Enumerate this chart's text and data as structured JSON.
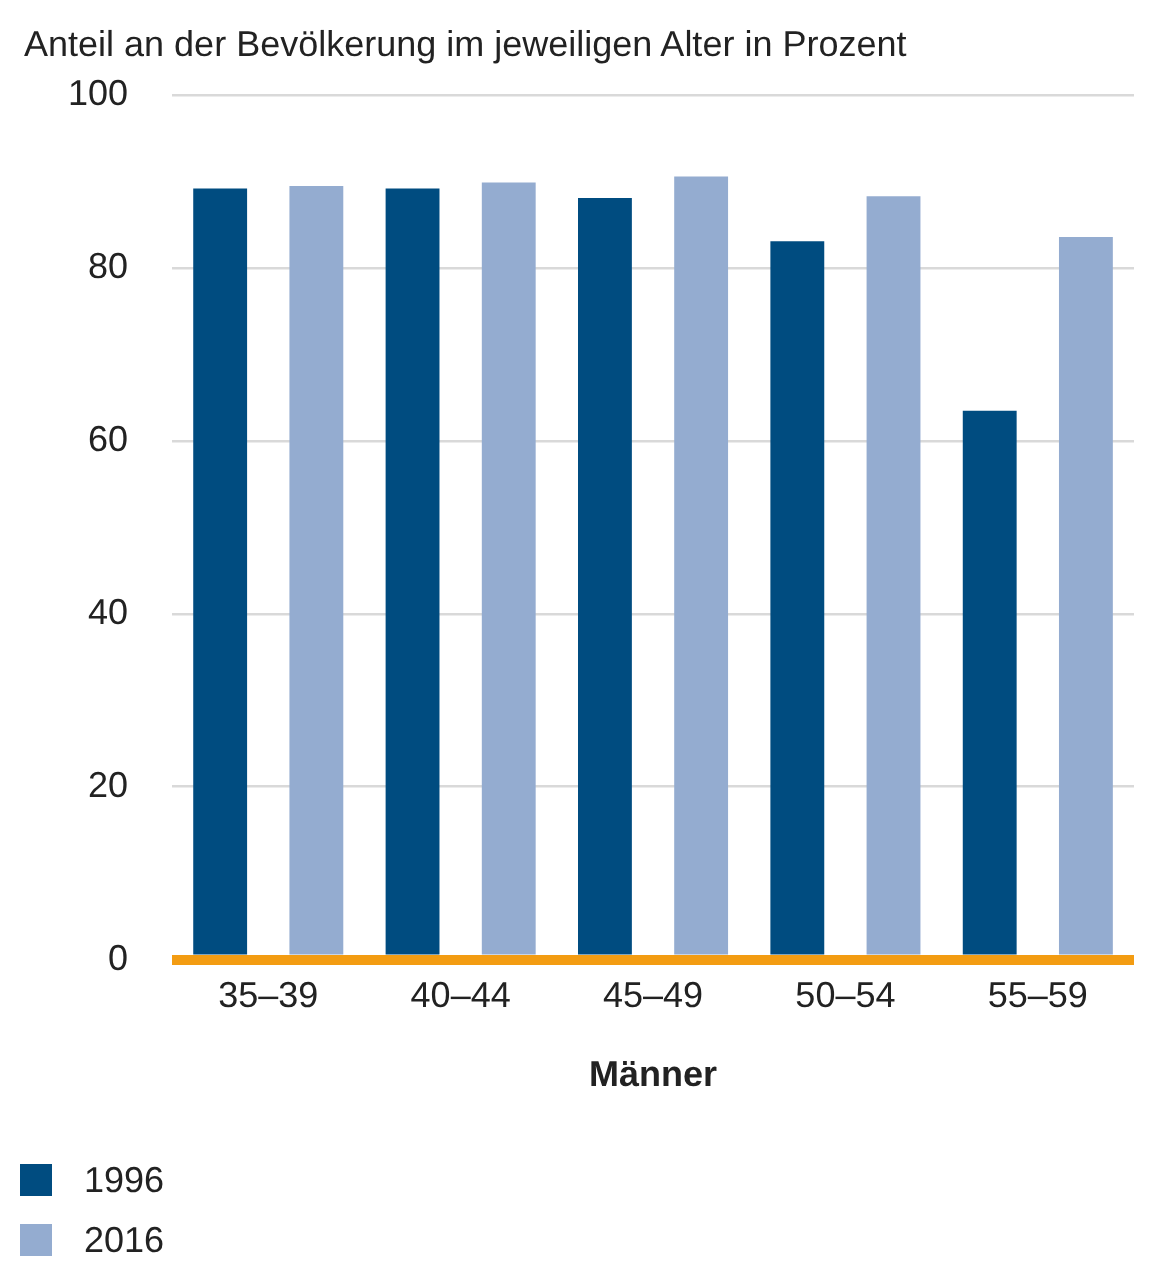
{
  "chart_data": {
    "type": "bar",
    "title": "Anteil an der Bevölkerung im jeweiligen Alter in Prozent",
    "xlabel": "Männer",
    "categories": [
      "35–39",
      "40–44",
      "45–49",
      "50–54",
      "55–59"
    ],
    "series": [
      {
        "name": "1996",
        "color": "#004c80",
        "values": [
          89.2,
          89.2,
          88.1,
          83.1,
          63.5
        ]
      },
      {
        "name": "2016",
        "color": "#94acd0",
        "values": [
          89.5,
          89.9,
          90.6,
          88.3,
          83.6
        ]
      }
    ],
    "ylim": [
      0,
      100
    ],
    "yticks": [
      0,
      20,
      40,
      60,
      80,
      100
    ],
    "grid": "y",
    "legend": "bottom left"
  }
}
